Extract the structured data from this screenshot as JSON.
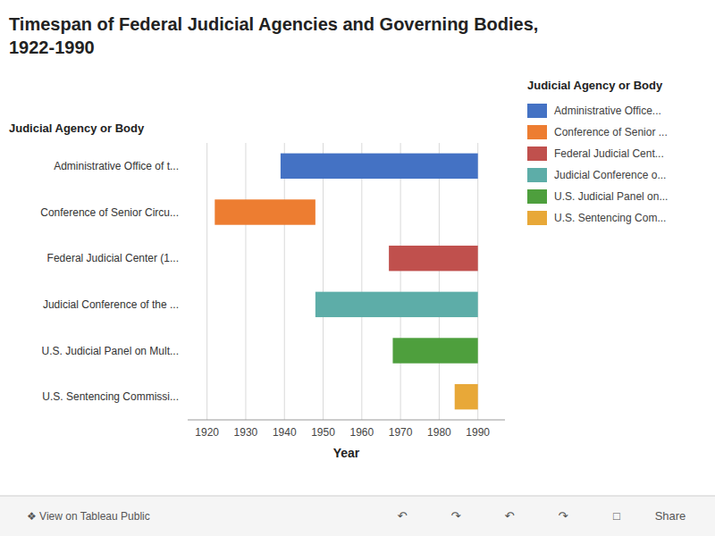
{
  "chart_data": {
    "type": "bar",
    "orientation": "horizontal",
    "title": "Timespan of Federal Judicial Agencies and Governing Bodies,",
    "subtitle": "1922-1990",
    "xlabel": "Year",
    "ylabel": "Judicial Agency or Body",
    "categories": [
      "Administrative Office of t...",
      "Conference of Senior Circu...",
      "Federal Judicial Center (1...",
      "Judicial Conference of the ...",
      "U.S. Judicial Panel on Mult...",
      "U.S. Sentencing Commissi..."
    ],
    "series": [
      {
        "name": "Administrative Office...",
        "color": "#4472C4",
        "start": [
          1939,
          null,
          null,
          null,
          null,
          null
        ],
        "values": [
          1990,
          null,
          null,
          null,
          null,
          null
        ]
      },
      {
        "name": "Conference of Senior ...",
        "color": "#ED7D31",
        "start": [
          null,
          1922,
          null,
          null,
          null,
          null
        ],
        "values": [
          null,
          1948,
          null,
          null,
          null,
          null
        ]
      },
      {
        "name": "Federal Judicial Cent...",
        "color": "#C0504D",
        "start": [
          null,
          null,
          1967,
          null,
          null,
          null
        ],
        "values": [
          null,
          null,
          1990,
          null,
          null,
          null
        ]
      },
      {
        "name": "Judicial Conference o...",
        "color": "#5DADA8",
        "start": [
          null,
          null,
          null,
          1948,
          null,
          null
        ],
        "values": [
          null,
          null,
          null,
          1990,
          null,
          null
        ]
      },
      {
        "name": "U.S. Judicial Panel on...",
        "color": "#4E9F3D",
        "start": [
          null,
          null,
          null,
          null,
          1968,
          null
        ],
        "values": [
          null,
          null,
          null,
          null,
          1990,
          null
        ]
      },
      {
        "name": "U.S. Sentencing Com...",
        "color": "#E8A838",
        "start": [
          null,
          null,
          null,
          null,
          null,
          1984
        ],
        "values": [
          null,
          null,
          null,
          null,
          null,
          1990
        ]
      }
    ],
    "xlim": [
      1915,
      1997
    ],
    "xticks": [
      1920,
      1930,
      1940,
      1950,
      1960,
      1970,
      1980,
      1990
    ],
    "grid": true,
    "legend": "upper right",
    "annotations": [
      "❖ View on Tableau Public",
      "↶",
      "↷",
      "↶",
      "↷",
      "□",
      "Share"
    ]
  }
}
